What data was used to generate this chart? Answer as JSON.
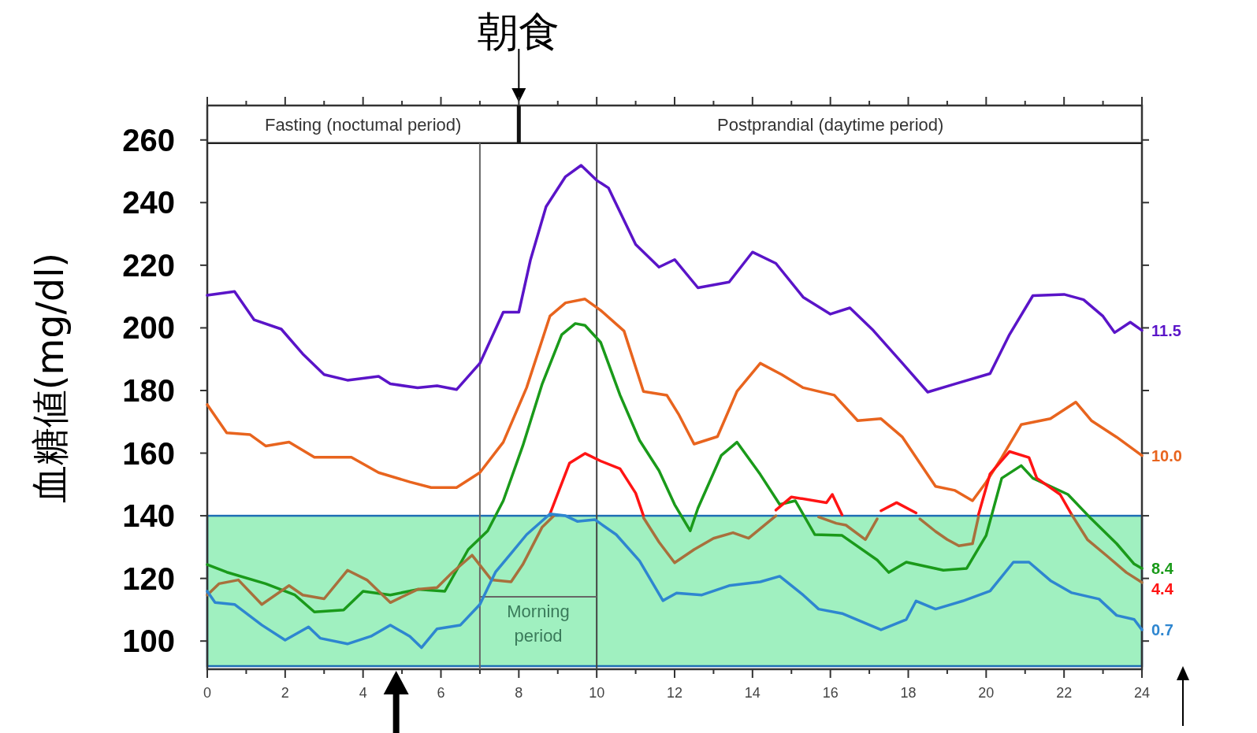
{
  "chart_data": {
    "type": "line",
    "ylabel": "血糖値(mg/dl)",
    "xlim": [
      0,
      24
    ],
    "ylim": [
      91,
      271
    ],
    "xticks": [
      0,
      {
        "value": 1,
        "label": null
      },
      2,
      {
        "value": 3,
        "label": null
      },
      4,
      {
        "value": 5,
        "label": null
      },
      6,
      {
        "value": 7,
        "label": null
      },
      8,
      {
        "value": 9,
        "label": null
      },
      10,
      {
        "value": 11,
        "label": null
      },
      12,
      {
        "value": 13,
        "label": null
      },
      14,
      {
        "value": 15,
        "label": null
      },
      16,
      {
        "value": 17,
        "label": null
      },
      18,
      {
        "value": 19,
        "label": null
      },
      20,
      {
        "value": 21,
        "label": null
      },
      22,
      {
        "value": 23,
        "label": null
      },
      24
    ],
    "yticks": [
      100,
      120,
      140,
      160,
      180,
      200,
      220,
      240,
      260
    ],
    "series": [
      {
        "name": "11.5",
        "color": "#5a14c8",
        "x": [
          0,
          0.7,
          1.2,
          1.9,
          2.45,
          3.0,
          3.6,
          4.4,
          4.7,
          5.4,
          5.9,
          6.4,
          7.0,
          7.6,
          8.0,
          8.3,
          8.7,
          9.2,
          9.6,
          10.0,
          10.3,
          11.0,
          11.6,
          12.0,
          12.6,
          13.4,
          14.0,
          14.6,
          15.3,
          16.0,
          16.5,
          17.1,
          17.85,
          18.5,
          19.2,
          20.1,
          20.6,
          21.2,
          22.0,
          22.5,
          23.0,
          23.3,
          23.7,
          24.0
        ],
        "values": [
          210.4,
          211.6,
          202.6,
          199.6,
          191.7,
          185.1,
          183.3,
          184.5,
          182.1,
          180.9,
          181.5,
          180.3,
          188.7,
          205,
          205,
          221.8,
          238.7,
          248.3,
          251.9,
          247.1,
          244.7,
          226.6,
          219.4,
          221.8,
          212.8,
          214.6,
          224.2,
          220.6,
          209.8,
          204.4,
          206.4,
          199.2,
          188.7,
          179.5,
          182.1,
          185.4,
          197.9,
          210.3,
          210.7,
          209,
          203.7,
          198.5,
          201.8,
          199.2
        ]
      },
      {
        "name": "10.0",
        "color": "#e8641e",
        "x": [
          0,
          0.5,
          1.1,
          1.5,
          2.1,
          2.75,
          3.7,
          4.4,
          5.2,
          5.75,
          6.4,
          7.0,
          7.6,
          8.2,
          8.8,
          9.2,
          9.7,
          10.1,
          10.7,
          11.2,
          11.8,
          12.1,
          12.5,
          13.1,
          13.6,
          14.2,
          14.75,
          15.3,
          16.1,
          16.7,
          17.3,
          17.85,
          18.7,
          19.2,
          19.65,
          20.0,
          20.4,
          20.9,
          21.65,
          22.3,
          22.7,
          23.35,
          24.0
        ],
        "values": [
          175.5,
          166.5,
          165.9,
          162.3,
          163.5,
          158.7,
          158.7,
          153.8,
          150.8,
          149,
          149,
          153.8,
          163.5,
          180.9,
          203.8,
          208,
          209.2,
          205.6,
          199,
          179.7,
          178.5,
          172.5,
          162.9,
          165.3,
          179.7,
          188.7,
          185.1,
          180.9,
          178.5,
          170.4,
          171,
          165.1,
          149.4,
          148.1,
          144.8,
          150.7,
          158.6,
          169.1,
          171,
          176.3,
          170.4,
          165.1,
          159.2
        ]
      },
      {
        "name": "8.4",
        "color": "#1a9a1a",
        "x": [
          0,
          0.5,
          1.5,
          2.25,
          2.75,
          3.5,
          4.0,
          4.7,
          5.4,
          6.1,
          6.7,
          7.2,
          7.6,
          8.1,
          8.6,
          9.1,
          9.45,
          9.7,
          10.1,
          10.6,
          11.1,
          11.6,
          12.0,
          12.4,
          12.6,
          13.2,
          13.6,
          14.2,
          14.7,
          15.1,
          15.6,
          16.3,
          17.2,
          17.5,
          17.95,
          18.9,
          19.5,
          20.0,
          20.4,
          20.9,
          21.2,
          22.1,
          22.7,
          23.35,
          23.8,
          24.0
        ],
        "values": [
          124.4,
          122,
          118.3,
          114.7,
          109.3,
          109.9,
          115.9,
          114.7,
          116.5,
          115.9,
          129.2,
          135.2,
          144.8,
          162.3,
          182.1,
          197.8,
          201.4,
          200.8,
          195.4,
          178.5,
          164.1,
          154.4,
          143.6,
          135.2,
          142.4,
          159.3,
          163.5,
          153.2,
          143.6,
          144.8,
          134,
          133.7,
          125.9,
          121.9,
          125.2,
          122.6,
          123.2,
          133.7,
          152,
          156,
          152,
          146.8,
          139,
          131.1,
          124.6,
          123.2
        ]
      },
      {
        "name": "4.4",
        "color": "#ff1414",
        "x": [
          8.8,
          9.3,
          9.7,
          10.1,
          10.6,
          11.0,
          11.2,
          12.0,
          14.6,
          15.0,
          15.9,
          16.05,
          16.3,
          16.8,
          17.3,
          17.7,
          18.2,
          19.0,
          19.8,
          20.1,
          20.6,
          21.1,
          21.3,
          21.9,
          22.2
        ],
        "values": [
          140.6,
          156.8,
          159.9,
          157.5,
          155,
          147.2,
          140,
          null,
          141.8,
          146,
          144.2,
          146.8,
          140.3,
          null,
          141.6,
          144.2,
          140.9,
          null,
          140.3,
          153.4,
          160.5,
          158.6,
          152,
          146.8,
          140.3
        ]
      },
      {
        "color": "#a8703c",
        "x": [
          0,
          0.3,
          0.8,
          1.4,
          2.1,
          2.45,
          3.0,
          3.6,
          4.1,
          4.7,
          5.4,
          5.9,
          6.3,
          6.8,
          7.3,
          7.8,
          8.1,
          8.6,
          8.9,
          10.0,
          11.2,
          11.6,
          12.0,
          12.5,
          13.0,
          13.5,
          13.9,
          14.6,
          15.2,
          15.7,
          16.15,
          16.4,
          16.9,
          17.2,
          17.7,
          18.3,
          18.7,
          19.0,
          19.3,
          19.65,
          19.8,
          21.0,
          22.2,
          22.6,
          23.1,
          23.6,
          24.0
        ],
        "values": [
          114.7,
          118.3,
          119.5,
          111.7,
          117.7,
          114.7,
          113.5,
          122.6,
          119.5,
          112.3,
          116.5,
          117.1,
          122,
          127.4,
          119.5,
          118.9,
          124.4,
          136.4,
          140,
          null,
          139.4,
          131.6,
          125,
          129.2,
          132.8,
          134.6,
          132.8,
          140,
          null,
          139.6,
          137.6,
          137,
          132.4,
          139,
          null,
          139,
          135,
          132.4,
          130.4,
          131.1,
          139.6,
          null,
          140.3,
          132.4,
          127.2,
          121.9,
          118.7
        ]
      },
      {
        "name": "0.7",
        "color": "#2e86d0",
        "x": [
          0,
          0.2,
          0.7,
          1.4,
          2.0,
          2.6,
          2.9,
          3.6,
          4.2,
          4.7,
          5.2,
          5.5,
          5.9,
          6.5,
          7.0,
          7.4,
          7.8,
          8.2,
          8.8,
          9.2,
          9.5,
          9.95,
          10.5,
          11.1,
          11.7,
          12.05,
          12.7,
          13.4,
          14.2,
          14.7,
          15.3,
          15.7,
          16.3,
          17.3,
          17.95,
          18.2,
          18.7,
          19.4,
          20.1,
          20.7,
          21.1,
          21.65,
          22.2,
          22.9,
          23.35,
          23.8,
          24.0
        ],
        "values": [
          115.9,
          112.3,
          111.7,
          105.1,
          100.3,
          104.5,
          100.9,
          99.1,
          101.5,
          105.1,
          101.5,
          97.9,
          103.9,
          105.1,
          111.7,
          122,
          128,
          134,
          140.6,
          140,
          138.2,
          138.8,
          134,
          125.6,
          112.9,
          115.3,
          114.7,
          117.7,
          118.9,
          120.7,
          114.7,
          110.2,
          108.8,
          103.6,
          106.9,
          112.8,
          110.2,
          112.8,
          116,
          125.2,
          125.2,
          119.3,
          115.4,
          113.4,
          108.2,
          106.9,
          103.6
        ]
      }
    ],
    "ref_lines": [
      {
        "axis": "y",
        "value": 259,
        "color": "#222222"
      },
      {
        "axis": "x",
        "value": 8,
        "label": "朝食",
        "color": "#111111"
      },
      {
        "axis": "x",
        "value": 7,
        "color": "#666666"
      },
      {
        "axis": "x",
        "value": 10,
        "color": "#444444"
      }
    ],
    "bands": [
      {
        "axis": "y",
        "from": 92,
        "to": 140,
        "color": "#a0f0c0"
      }
    ],
    "annotations": [
      "Fasting (noctumal period)",
      "Postprandial (daytime period)",
      "Morning period"
    ]
  }
}
